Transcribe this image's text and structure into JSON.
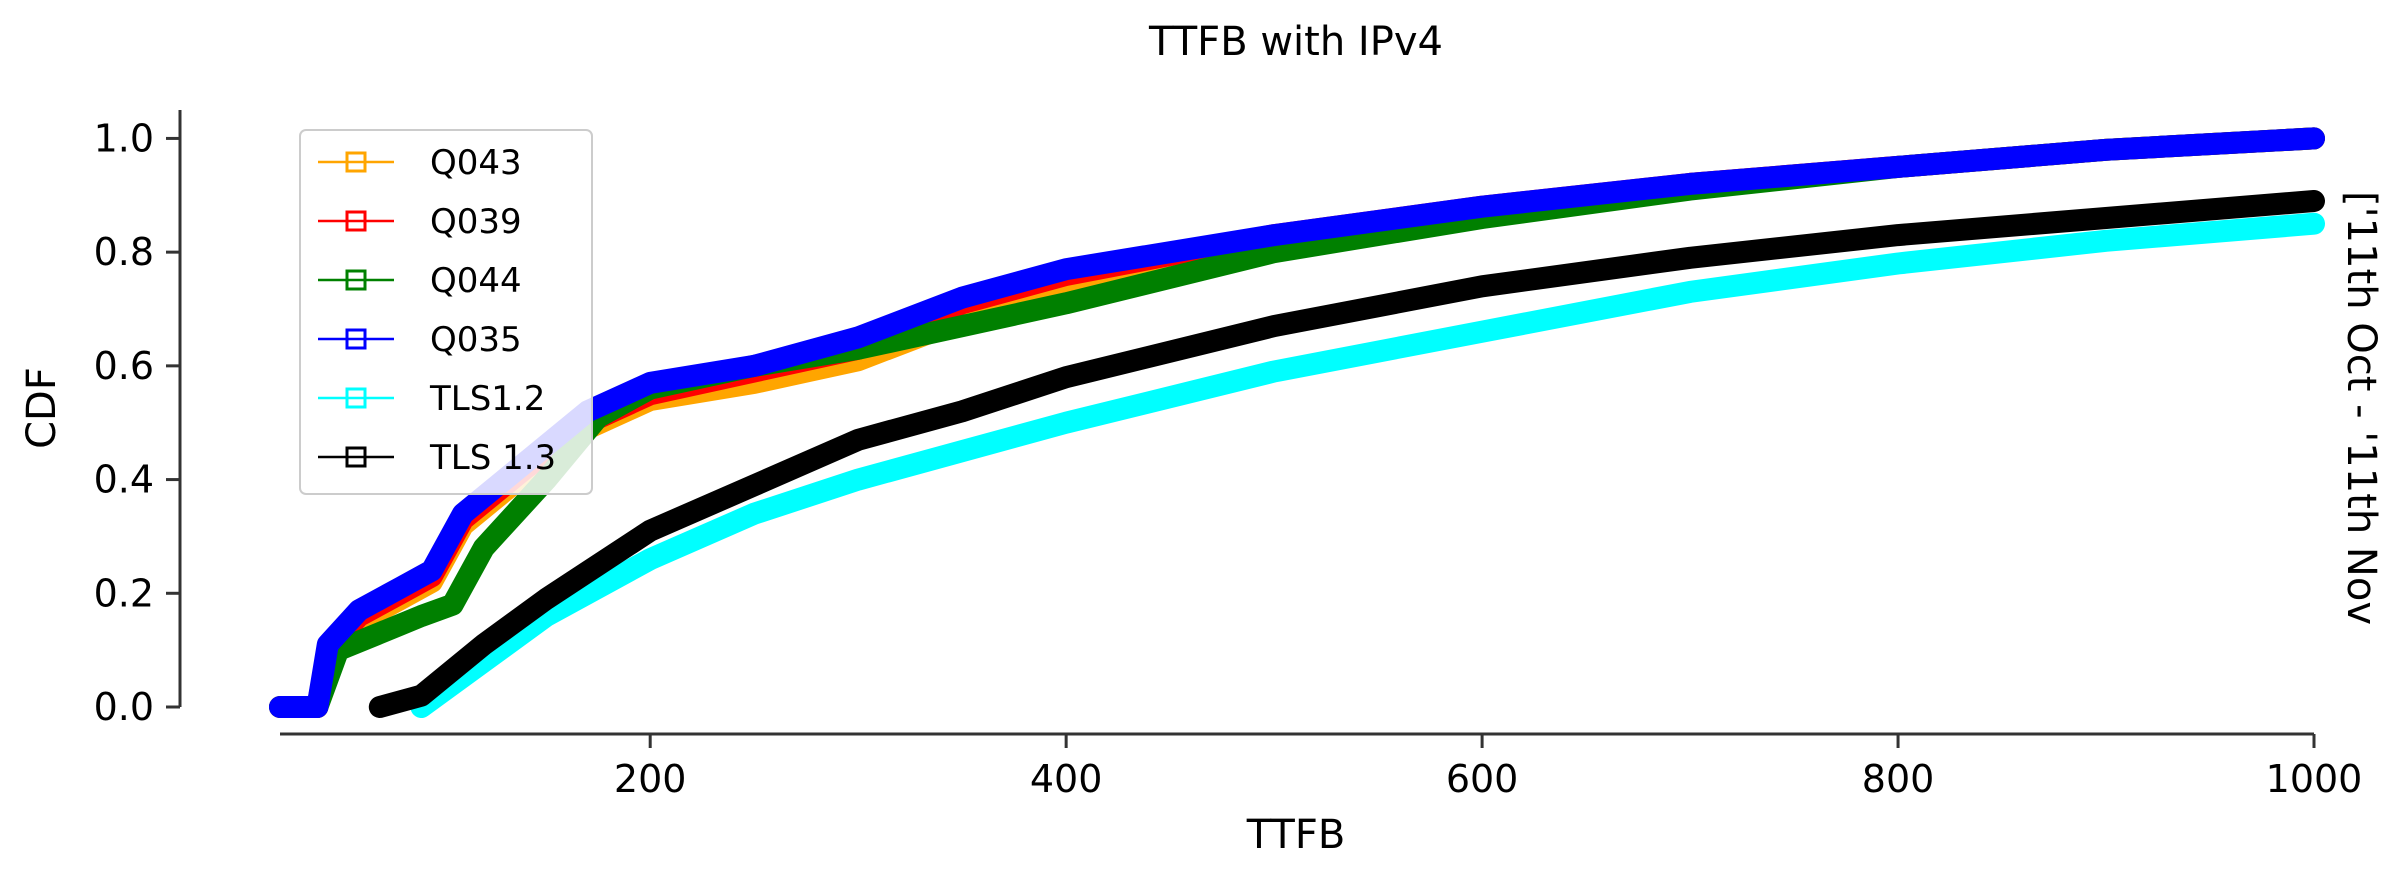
{
  "chart_data": {
    "type": "line",
    "title": "TTFB with IPv4",
    "xlabel": "TTFB",
    "ylabel": "CDF",
    "side_label": "['11th Oct - '11th Nov",
    "xlim": [
      22,
      1000
    ],
    "ylim": [
      0,
      1.05
    ],
    "x_ticks": [
      200,
      400,
      600,
      800,
      1000
    ],
    "y_ticks": [
      0.0,
      0.2,
      0.4,
      0.6,
      0.8,
      1.0
    ],
    "x_tick_labels": [
      "200",
      "400",
      "600",
      "800",
      "1000"
    ],
    "y_tick_labels": [
      "0.0",
      "0.2",
      "0.4",
      "0.6",
      "0.8",
      "1.0"
    ],
    "grid": false,
    "legend_position": "upper-left",
    "series": [
      {
        "name": "Q043",
        "color": "#ffa500",
        "points": [
          [
            22,
            0
          ],
          [
            40,
            0
          ],
          [
            45,
            0.09
          ],
          [
            60,
            0.15
          ],
          [
            80,
            0.19
          ],
          [
            95,
            0.22
          ],
          [
            110,
            0.32
          ],
          [
            140,
            0.41
          ],
          [
            170,
            0.49
          ],
          [
            200,
            0.54
          ],
          [
            250,
            0.57
          ],
          [
            300,
            0.61
          ],
          [
            350,
            0.68
          ],
          [
            400,
            0.74
          ],
          [
            500,
            0.81
          ],
          [
            600,
            0.87
          ],
          [
            700,
            0.92
          ],
          [
            800,
            0.95
          ],
          [
            900,
            0.98
          ],
          [
            1000,
            1.0
          ]
        ]
      },
      {
        "name": "Q039",
        "color": "#ff0000",
        "points": [
          [
            22,
            0
          ],
          [
            40,
            0
          ],
          [
            45,
            0.1
          ],
          [
            60,
            0.16
          ],
          [
            80,
            0.2
          ],
          [
            95,
            0.23
          ],
          [
            110,
            0.33
          ],
          [
            140,
            0.42
          ],
          [
            170,
            0.5
          ],
          [
            200,
            0.55
          ],
          [
            250,
            0.59
          ],
          [
            300,
            0.63
          ],
          [
            350,
            0.71
          ],
          [
            400,
            0.76
          ],
          [
            500,
            0.83
          ],
          [
            600,
            0.88
          ],
          [
            700,
            0.92
          ],
          [
            800,
            0.95
          ],
          [
            900,
            0.98
          ],
          [
            1000,
            1.0
          ]
        ]
      },
      {
        "name": "Q044",
        "color": "#008000",
        "points": [
          [
            22,
            0
          ],
          [
            40,
            0
          ],
          [
            50,
            0.1
          ],
          [
            70,
            0.13
          ],
          [
            90,
            0.16
          ],
          [
            105,
            0.18
          ],
          [
            120,
            0.28
          ],
          [
            150,
            0.4
          ],
          [
            175,
            0.51
          ],
          [
            200,
            0.56
          ],
          [
            250,
            0.6
          ],
          [
            300,
            0.63
          ],
          [
            350,
            0.67
          ],
          [
            400,
            0.71
          ],
          [
            500,
            0.8
          ],
          [
            600,
            0.86
          ],
          [
            700,
            0.91
          ],
          [
            800,
            0.95
          ],
          [
            900,
            0.98
          ],
          [
            1000,
            1.0
          ]
        ]
      },
      {
        "name": "Q035",
        "color": "#0000ff",
        "points": [
          [
            22,
            0
          ],
          [
            40,
            0
          ],
          [
            45,
            0.11
          ],
          [
            60,
            0.17
          ],
          [
            80,
            0.21
          ],
          [
            95,
            0.24
          ],
          [
            110,
            0.34
          ],
          [
            140,
            0.43
          ],
          [
            170,
            0.52
          ],
          [
            200,
            0.57
          ],
          [
            250,
            0.6
          ],
          [
            300,
            0.65
          ],
          [
            350,
            0.72
          ],
          [
            400,
            0.77
          ],
          [
            500,
            0.83
          ],
          [
            600,
            0.88
          ],
          [
            700,
            0.92
          ],
          [
            800,
            0.95
          ],
          [
            900,
            0.98
          ],
          [
            1000,
            1.0
          ]
        ]
      },
      {
        "name": "TLS1.2",
        "color": "#00ffff",
        "points": [
          [
            90,
            0
          ],
          [
            120,
            0.08
          ],
          [
            150,
            0.16
          ],
          [
            200,
            0.26
          ],
          [
            250,
            0.34
          ],
          [
            300,
            0.4
          ],
          [
            350,
            0.45
          ],
          [
            400,
            0.5
          ],
          [
            500,
            0.59
          ],
          [
            600,
            0.66
          ],
          [
            700,
            0.73
          ],
          [
            800,
            0.78
          ],
          [
            900,
            0.82
          ],
          [
            1000,
            0.85
          ]
        ]
      },
      {
        "name": "TLS 1.3",
        "color": "#000000",
        "points": [
          [
            70,
            0
          ],
          [
            90,
            0.02
          ],
          [
            120,
            0.11
          ],
          [
            150,
            0.19
          ],
          [
            200,
            0.31
          ],
          [
            250,
            0.39
          ],
          [
            300,
            0.47
          ],
          [
            350,
            0.52
          ],
          [
            400,
            0.58
          ],
          [
            500,
            0.67
          ],
          [
            600,
            0.74
          ],
          [
            700,
            0.79
          ],
          [
            800,
            0.83
          ],
          [
            900,
            0.86
          ],
          [
            1000,
            0.89
          ]
        ]
      }
    ]
  }
}
